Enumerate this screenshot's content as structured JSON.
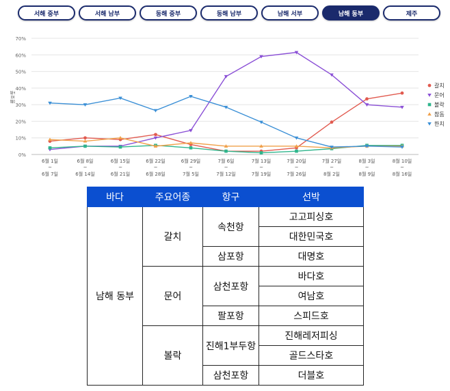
{
  "tabs": [
    {
      "label": "서해 중부",
      "active": false
    },
    {
      "label": "서해 남부",
      "active": false
    },
    {
      "label": "동해 중부",
      "active": false
    },
    {
      "label": "동해 남부",
      "active": false
    },
    {
      "label": "남해 서부",
      "active": false
    },
    {
      "label": "남해 동부",
      "active": true
    },
    {
      "label": "제주",
      "active": false
    }
  ],
  "chart_data": {
    "type": "line",
    "ylabel": "출조율",
    "ylim": [
      0,
      70
    ],
    "yticks": [
      "0%",
      "10%",
      "20%",
      "30%",
      "40%",
      "50%",
      "60%",
      "70%"
    ],
    "categories": [
      [
        "6월 1일",
        "6월 7일"
      ],
      [
        "6월 8일",
        "6월 14일"
      ],
      [
        "6월 15일",
        "6월 21일"
      ],
      [
        "6월 22일",
        "6월 28일"
      ],
      [
        "6월 29일",
        "7월 5일"
      ],
      [
        "7월 6일",
        "7월 12일"
      ],
      [
        "7월 13일",
        "7월 19일"
      ],
      [
        "7월 20일",
        "7월 26일"
      ],
      [
        "7월 27일",
        "8월 2일"
      ],
      [
        "8월 3일",
        "8월 9일"
      ],
      [
        "8월 10일",
        "8월 16일"
      ]
    ],
    "series": [
      {
        "name": "갈치",
        "color": "#e15a4f",
        "marker": "circle",
        "values": [
          8,
          10,
          9,
          12,
          6,
          2,
          2,
          4,
          19.5,
          33.5,
          37
        ]
      },
      {
        "name": "문어",
        "color": "#8a4fd6",
        "marker": "tri-down",
        "values": [
          3,
          5,
          5,
          10,
          14.5,
          47,
          59,
          61.5,
          48,
          30,
          28.5
        ]
      },
      {
        "name": "볼락",
        "color": "#2fb58c",
        "marker": "square",
        "values": [
          4,
          5,
          4.5,
          5.5,
          4,
          2,
          1,
          2,
          3.5,
          5.5,
          5.5
        ]
      },
      {
        "name": "참돔",
        "color": "#f0a04a",
        "marker": "tri-up",
        "values": [
          9,
          8,
          10,
          5,
          7,
          5,
          5,
          5,
          4,
          5,
          5
        ]
      },
      {
        "name": "한치",
        "color": "#3a8fd6",
        "marker": "tri-down",
        "values": [
          31,
          30,
          34,
          26.5,
          35,
          28.5,
          19.5,
          10,
          4.5,
          5,
          4.5
        ]
      }
    ]
  },
  "table": {
    "headers": [
      "바다",
      "주요어종",
      "항구",
      "선박"
    ],
    "sea": "남해 동부",
    "species": [
      "갈치",
      "문어",
      "볼락"
    ],
    "ports": [
      "속천항",
      "삼포항",
      "삼천포항",
      "팔포항",
      "진해1부두항",
      "삼천포항"
    ],
    "boats": [
      "고고피싱호",
      "대한민국호",
      "대명호",
      "바다호",
      "여남호",
      "스피드호",
      "진해레저피싱",
      "골드스타호",
      "더블호"
    ]
  }
}
